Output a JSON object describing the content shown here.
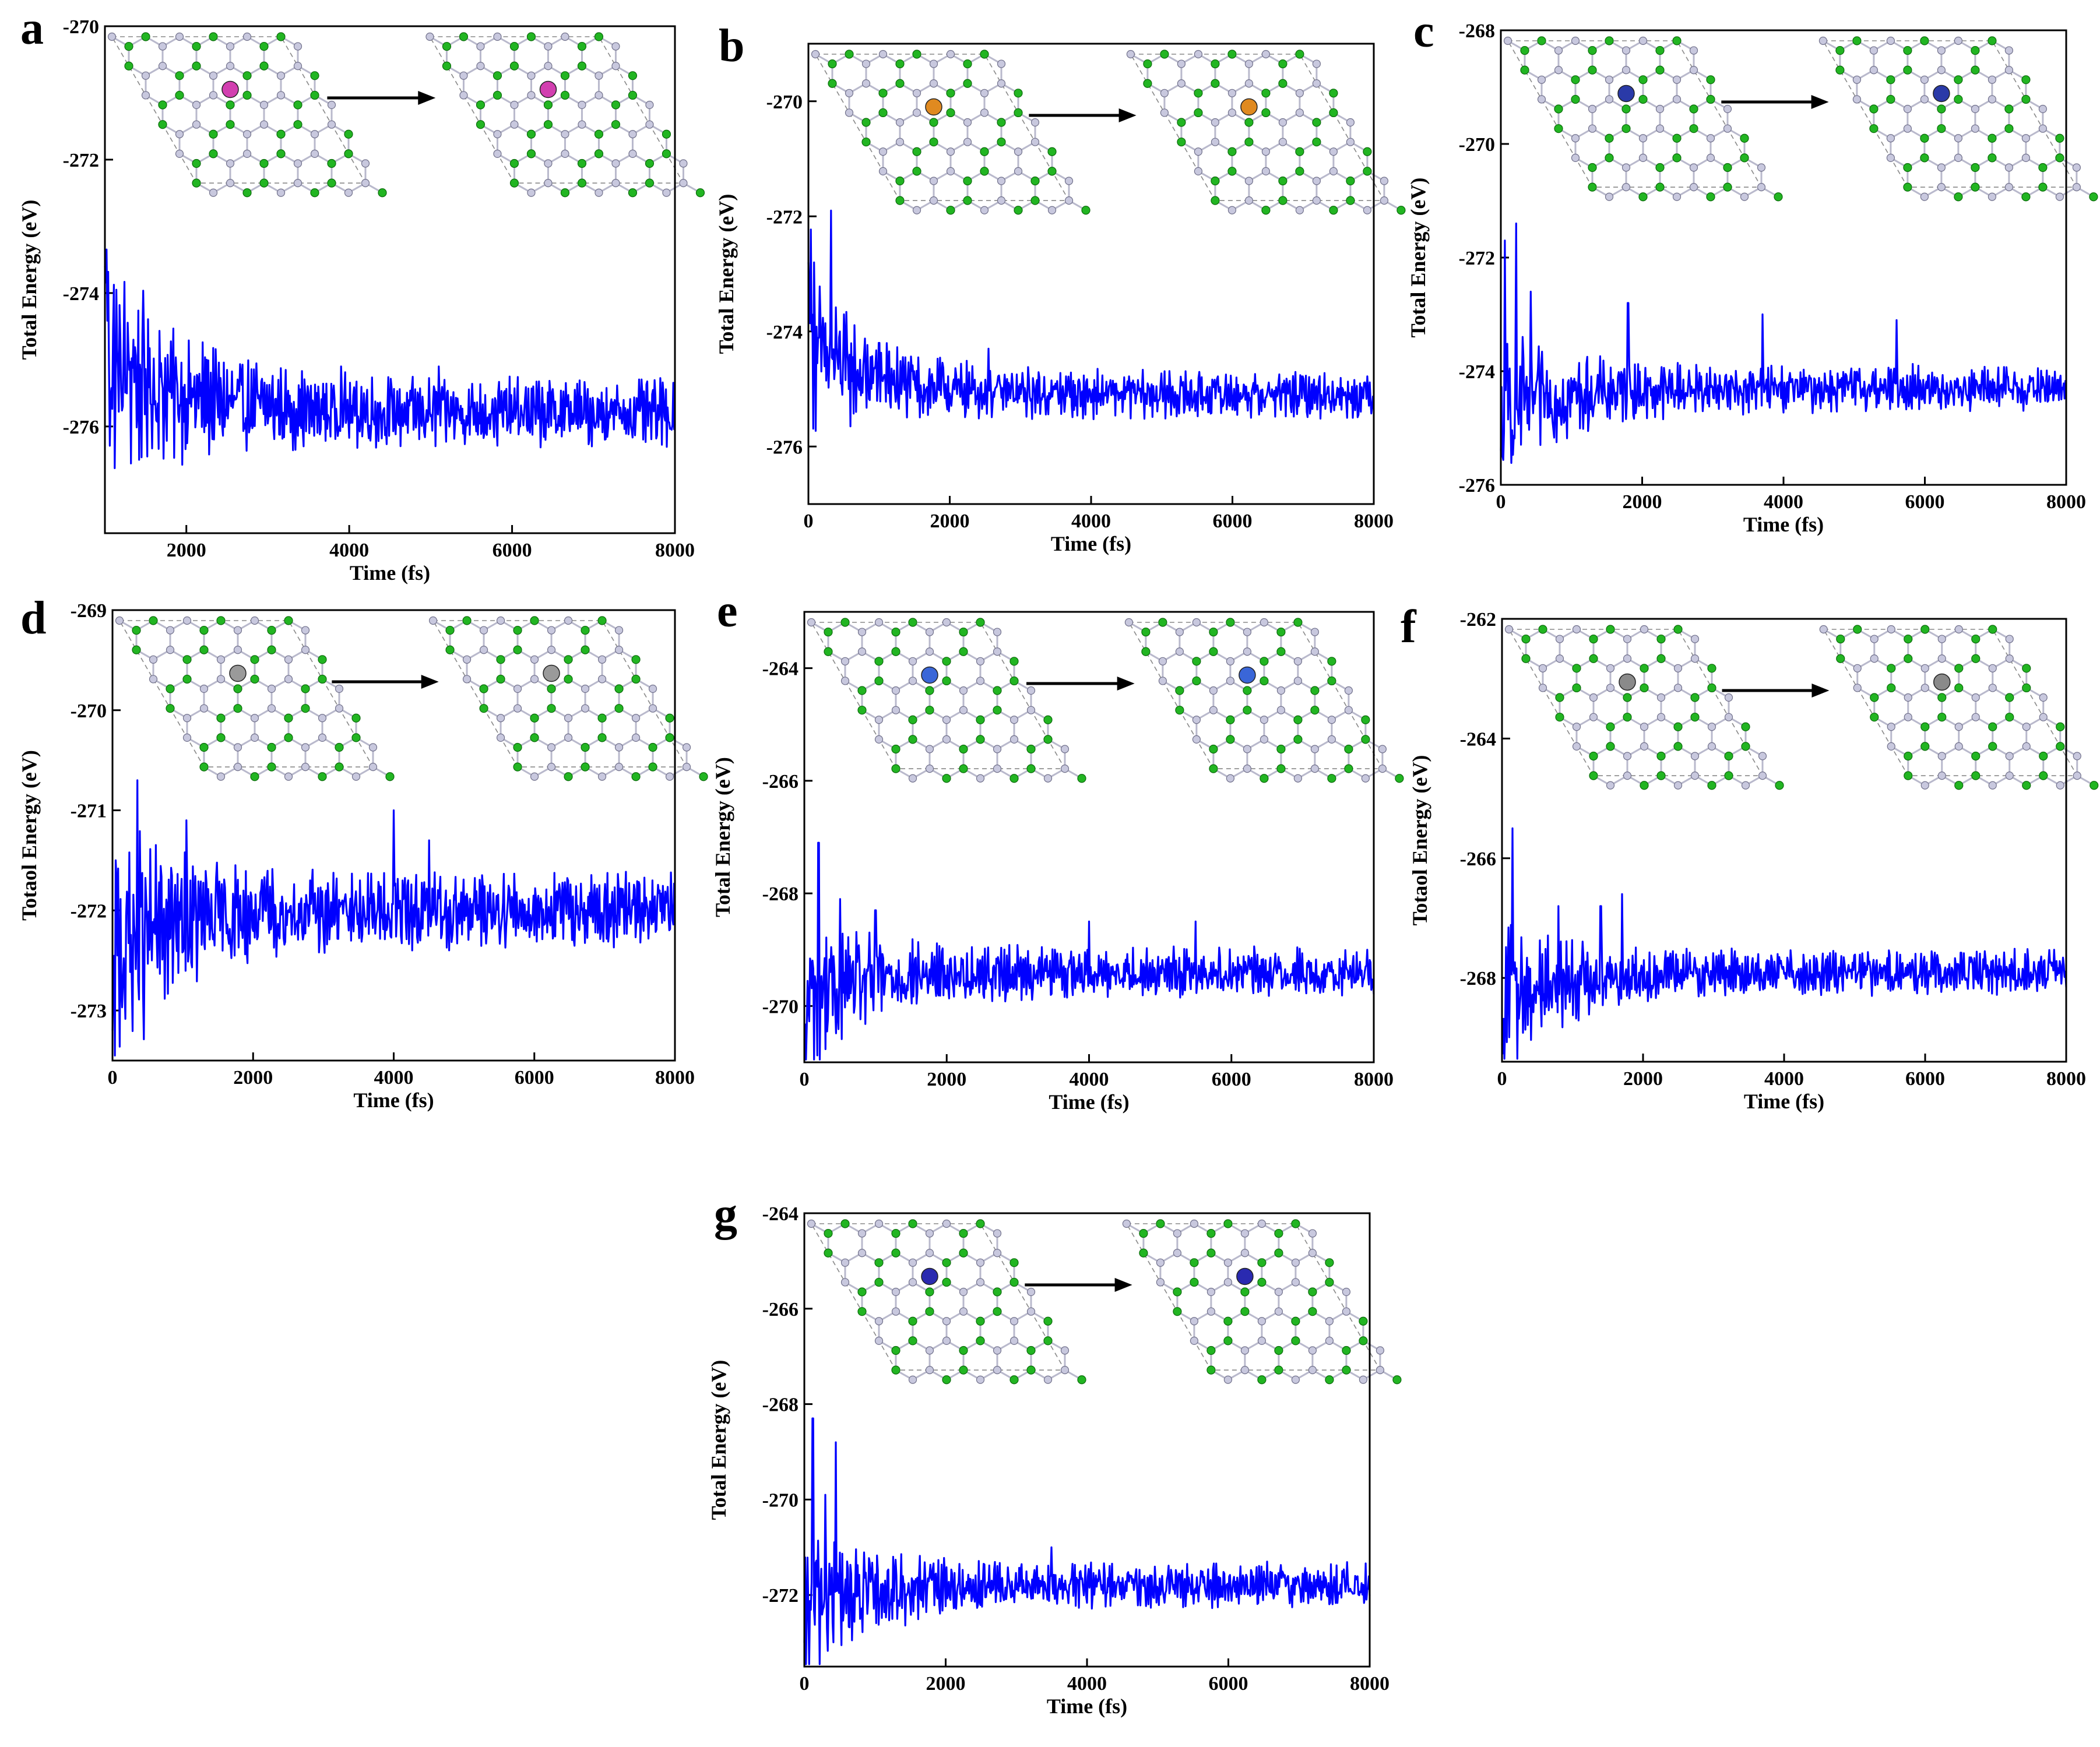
{
  "figure": {
    "description_labels": [
      "a",
      "b",
      "c",
      "d",
      "e",
      "f",
      "g"
    ]
  },
  "chart_data": [
    {
      "panel": "a",
      "type": "line",
      "title": "",
      "xlabel": "Time (fs)",
      "ylabel": "Total Energy (eV)",
      "xlim": [
        1000,
        8000
      ],
      "ylim": [
        -277.6,
        -270
      ],
      "xticks": [
        2000,
        4000,
        6000,
        8000
      ],
      "yticks": [
        -276,
        -274,
        -272,
        -270
      ],
      "dopant_color": "#d23fb0",
      "series": [
        {
          "name": "Total Energy",
          "start_value": -273.6,
          "mean": -275.8,
          "amplitude": 0.38,
          "spikes": [
            [
              1050,
              -275.1
            ],
            [
              1350,
              -274.7
            ],
            [
              2250,
              -275.0
            ],
            [
              3900,
              -275.1
            ],
            [
              5100,
              -275.1
            ]
          ],
          "color": "#0000ff"
        }
      ]
    },
    {
      "panel": "b",
      "type": "line",
      "title": "",
      "xlabel": "Time (fs)",
      "ylabel": "Total Energy (eV)",
      "xlim": [
        0,
        8000
      ],
      "ylim": [
        -277,
        -269
      ],
      "xticks": [
        0,
        2000,
        4000,
        6000,
        8000
      ],
      "yticks": [
        -276,
        -274,
        -272,
        -270
      ],
      "dopant_color": "#e08a20",
      "series": [
        {
          "name": "Total Energy",
          "start_value": -272.8,
          "mean": -275.1,
          "amplitude": 0.3,
          "spikes": [
            [
              80,
              -272.8
            ],
            [
              320,
              -271.9
            ],
            [
              450,
              -274.0
            ],
            [
              1000,
              -274.2
            ],
            [
              2550,
              -274.3
            ]
          ],
          "color": "#0000ff"
        }
      ]
    },
    {
      "panel": "c",
      "type": "line",
      "title": "",
      "xlabel": "Time (fs)",
      "ylabel": "Total Energy (eV)",
      "xlim": [
        0,
        8000
      ],
      "ylim": [
        -276,
        -268
      ],
      "xticks": [
        0,
        2000,
        4000,
        6000,
        8000
      ],
      "yticks": [
        -276,
        -274,
        -272,
        -270,
        -268
      ],
      "dopant_color": "#2a3aa8",
      "series": [
        {
          "name": "Total Energy",
          "start_value": -275.4,
          "mean": -274.3,
          "amplitude": 0.3,
          "spikes": [
            [
              60,
              -271.7
            ],
            [
              220,
              -271.4
            ],
            [
              420,
              -272.6
            ],
            [
              1800,
              -272.8
            ],
            [
              3700,
              -273.0
            ],
            [
              5600,
              -273.1
            ]
          ],
          "color": "#0000ff"
        }
      ]
    },
    {
      "panel": "d",
      "type": "line",
      "title": "",
      "xlabel": "Time (fs)",
      "ylabel": "Totaol Energy (eV)",
      "xlim": [
        0,
        8000
      ],
      "ylim": [
        -273.5,
        -269
      ],
      "xticks": [
        0,
        2000,
        4000,
        6000,
        8000
      ],
      "yticks": [
        -273,
        -272,
        -271,
        -270,
        -269
      ],
      "dopant_color": "#9a9a9a",
      "series": [
        {
          "name": "Total Energy",
          "start_value": -273.2,
          "mean": -272.0,
          "amplitude": 0.28,
          "spikes": [
            [
              350,
              -270.7
            ],
            [
              1050,
              -271.1
            ],
            [
              4000,
              -271.0
            ],
            [
              4500,
              -271.3
            ]
          ],
          "color": "#0000ff"
        }
      ]
    },
    {
      "panel": "e",
      "type": "line",
      "title": "",
      "xlabel": "Time (fs)",
      "ylabel": "Total Energy (eV)",
      "xlim": [
        0,
        8000
      ],
      "ylim": [
        -271,
        -263
      ],
      "xticks": [
        0,
        2000,
        4000,
        6000,
        8000
      ],
      "yticks": [
        -270,
        -268,
        -266,
        -264
      ],
      "dopant_color": "#3a66d8",
      "series": [
        {
          "name": "Total Energy",
          "start_value": -270.6,
          "mean": -269.4,
          "amplitude": 0.32,
          "spikes": [
            [
              200,
              -267.1
            ],
            [
              500,
              -268.1
            ],
            [
              1000,
              -268.3
            ],
            [
              4000,
              -268.5
            ],
            [
              5500,
              -268.5
            ]
          ],
          "color": "#0000ff"
        }
      ]
    },
    {
      "panel": "f",
      "type": "line",
      "title": "",
      "xlabel": "Time (fs)",
      "ylabel": "Totaol Energy (eV)",
      "xlim": [
        0,
        8000
      ],
      "ylim": [
        -269.4,
        -262
      ],
      "xticks": [
        0,
        2000,
        4000,
        6000,
        8000
      ],
      "yticks": [
        -268,
        -266,
        -264,
        -262
      ],
      "dopant_color": "#8a8a8a",
      "series": [
        {
          "name": "Total Energy",
          "start_value": -269.1,
          "mean": -267.9,
          "amplitude": 0.28,
          "spikes": [
            [
              150,
              -265.5
            ],
            [
              800,
              -266.8
            ],
            [
              1400,
              -266.8
            ],
            [
              1700,
              -266.6
            ]
          ],
          "color": "#0000ff"
        }
      ]
    },
    {
      "panel": "g",
      "type": "line",
      "title": "",
      "xlabel": "Time (fs)",
      "ylabel": "Total Energy (eV)",
      "xlim": [
        0,
        8000
      ],
      "ylim": [
        -273.5,
        -264
      ],
      "xticks": [
        0,
        2000,
        4000,
        6000,
        8000
      ],
      "yticks": [
        -272,
        -270,
        -268,
        -266,
        -264
      ],
      "dopant_color": "#2a2ab0",
      "series": [
        {
          "name": "Total Energy",
          "start_value": -273.0,
          "mean": -271.8,
          "amplitude": 0.35,
          "spikes": [
            [
              120,
              -268.3
            ],
            [
              300,
              -269.9
            ],
            [
              450,
              -268.8
            ],
            [
              3500,
              -271.0
            ]
          ],
          "color": "#0000ff"
        }
      ]
    }
  ]
}
